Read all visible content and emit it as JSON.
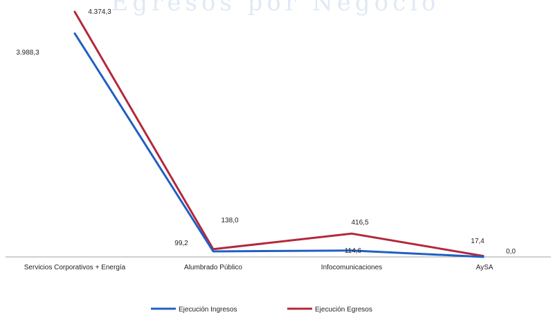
{
  "chart_data": {
    "type": "line",
    "title": "Egresos por Negocio",
    "categories": [
      "Servicios Corporativos + Energía",
      "Alumbrado Público",
      "Infocomunicaciones",
      "AySA"
    ],
    "series": [
      {
        "name": "Ejecución Ingresos",
        "color": "#1f5fc4",
        "values": [
          3988.3,
          99.2,
          114.6,
          0.0
        ]
      },
      {
        "name": "Ejecución Egresos",
        "color": "#b3283c",
        "values": [
          4374.3,
          138.0,
          416.5,
          17.4
        ]
      }
    ],
    "data_labels": {
      "Ejecución Ingresos": [
        "3.988,3",
        "99,2",
        "114,6",
        "0,0"
      ],
      "Ejecución Egresos": [
        "4.374,3",
        "138,0",
        "416,5",
        "17,4"
      ]
    },
    "ylim": [
      0,
      4400
    ],
    "xlabel": "",
    "ylabel": "",
    "grid": false,
    "legend": "bottom"
  }
}
